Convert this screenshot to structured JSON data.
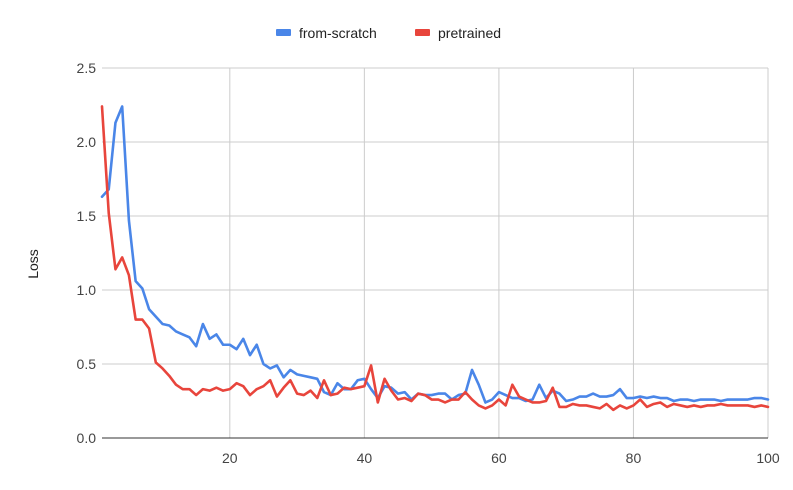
{
  "chart_data": {
    "type": "line",
    "title": "",
    "xlabel": "",
    "ylabel": "Loss",
    "xlim": [
      1,
      100
    ],
    "ylim": [
      0,
      2.5
    ],
    "x_ticks": [
      "20",
      "40",
      "60",
      "80",
      "100"
    ],
    "y_ticks": [
      "0.0",
      "0.5",
      "1.0",
      "1.5",
      "2.0",
      "2.5"
    ],
    "grid": "vertical and horizontal",
    "legend_position": "top",
    "x": [
      1,
      2,
      3,
      4,
      5,
      6,
      7,
      8,
      9,
      10,
      11,
      12,
      13,
      14,
      15,
      16,
      17,
      18,
      19,
      20,
      21,
      22,
      23,
      24,
      25,
      26,
      27,
      28,
      29,
      30,
      31,
      32,
      33,
      34,
      35,
      36,
      37,
      38,
      39,
      40,
      41,
      42,
      43,
      44,
      45,
      46,
      47,
      48,
      49,
      50,
      51,
      52,
      53,
      54,
      55,
      56,
      57,
      58,
      59,
      60,
      61,
      62,
      63,
      64,
      65,
      66,
      67,
      68,
      69,
      70,
      71,
      72,
      73,
      74,
      75,
      76,
      77,
      78,
      79,
      80,
      81,
      82,
      83,
      84,
      85,
      86,
      87,
      88,
      89,
      90,
      91,
      92,
      93,
      94,
      95,
      96,
      97,
      98,
      99,
      100
    ],
    "series": [
      {
        "name": "from-scratch",
        "color": "#4a86e8",
        "values": [
          1.63,
          1.68,
          2.13,
          2.24,
          1.47,
          1.06,
          1.01,
          0.87,
          0.82,
          0.77,
          0.76,
          0.72,
          0.7,
          0.68,
          0.62,
          0.77,
          0.67,
          0.7,
          0.63,
          0.63,
          0.6,
          0.67,
          0.56,
          0.63,
          0.5,
          0.47,
          0.49,
          0.41,
          0.46,
          0.43,
          0.42,
          0.41,
          0.4,
          0.31,
          0.29,
          0.37,
          0.33,
          0.33,
          0.39,
          0.4,
          0.33,
          0.27,
          0.35,
          0.34,
          0.3,
          0.31,
          0.26,
          0.3,
          0.29,
          0.29,
          0.3,
          0.3,
          0.26,
          0.29,
          0.3,
          0.46,
          0.36,
          0.24,
          0.26,
          0.31,
          0.29,
          0.27,
          0.27,
          0.25,
          0.26,
          0.36,
          0.27,
          0.32,
          0.3,
          0.25,
          0.26,
          0.28,
          0.28,
          0.3,
          0.28,
          0.28,
          0.29,
          0.33,
          0.27,
          0.27,
          0.28,
          0.27,
          0.28,
          0.27,
          0.27,
          0.25,
          0.26,
          0.26,
          0.25,
          0.26,
          0.26,
          0.26,
          0.25,
          0.26,
          0.26,
          0.26,
          0.26,
          0.27,
          0.27,
          0.26
        ]
      },
      {
        "name": "pretrained",
        "color": "#e8453c",
        "values": [
          2.24,
          1.52,
          1.14,
          1.22,
          1.1,
          0.8,
          0.8,
          0.74,
          0.51,
          0.47,
          0.42,
          0.36,
          0.33,
          0.33,
          0.29,
          0.33,
          0.32,
          0.34,
          0.32,
          0.33,
          0.37,
          0.35,
          0.29,
          0.33,
          0.35,
          0.39,
          0.28,
          0.34,
          0.39,
          0.3,
          0.29,
          0.32,
          0.27,
          0.39,
          0.29,
          0.3,
          0.34,
          0.33,
          0.34,
          0.35,
          0.49,
          0.24,
          0.4,
          0.32,
          0.26,
          0.27,
          0.25,
          0.3,
          0.29,
          0.26,
          0.26,
          0.24,
          0.26,
          0.26,
          0.31,
          0.26,
          0.22,
          0.2,
          0.22,
          0.26,
          0.22,
          0.36,
          0.28,
          0.26,
          0.24,
          0.24,
          0.25,
          0.34,
          0.21,
          0.21,
          0.23,
          0.22,
          0.22,
          0.21,
          0.2,
          0.23,
          0.19,
          0.22,
          0.2,
          0.22,
          0.26,
          0.21,
          0.23,
          0.24,
          0.21,
          0.23,
          0.22,
          0.21,
          0.22,
          0.21,
          0.22,
          0.22,
          0.23,
          0.22,
          0.22,
          0.22,
          0.22,
          0.21,
          0.22,
          0.21
        ]
      }
    ]
  }
}
